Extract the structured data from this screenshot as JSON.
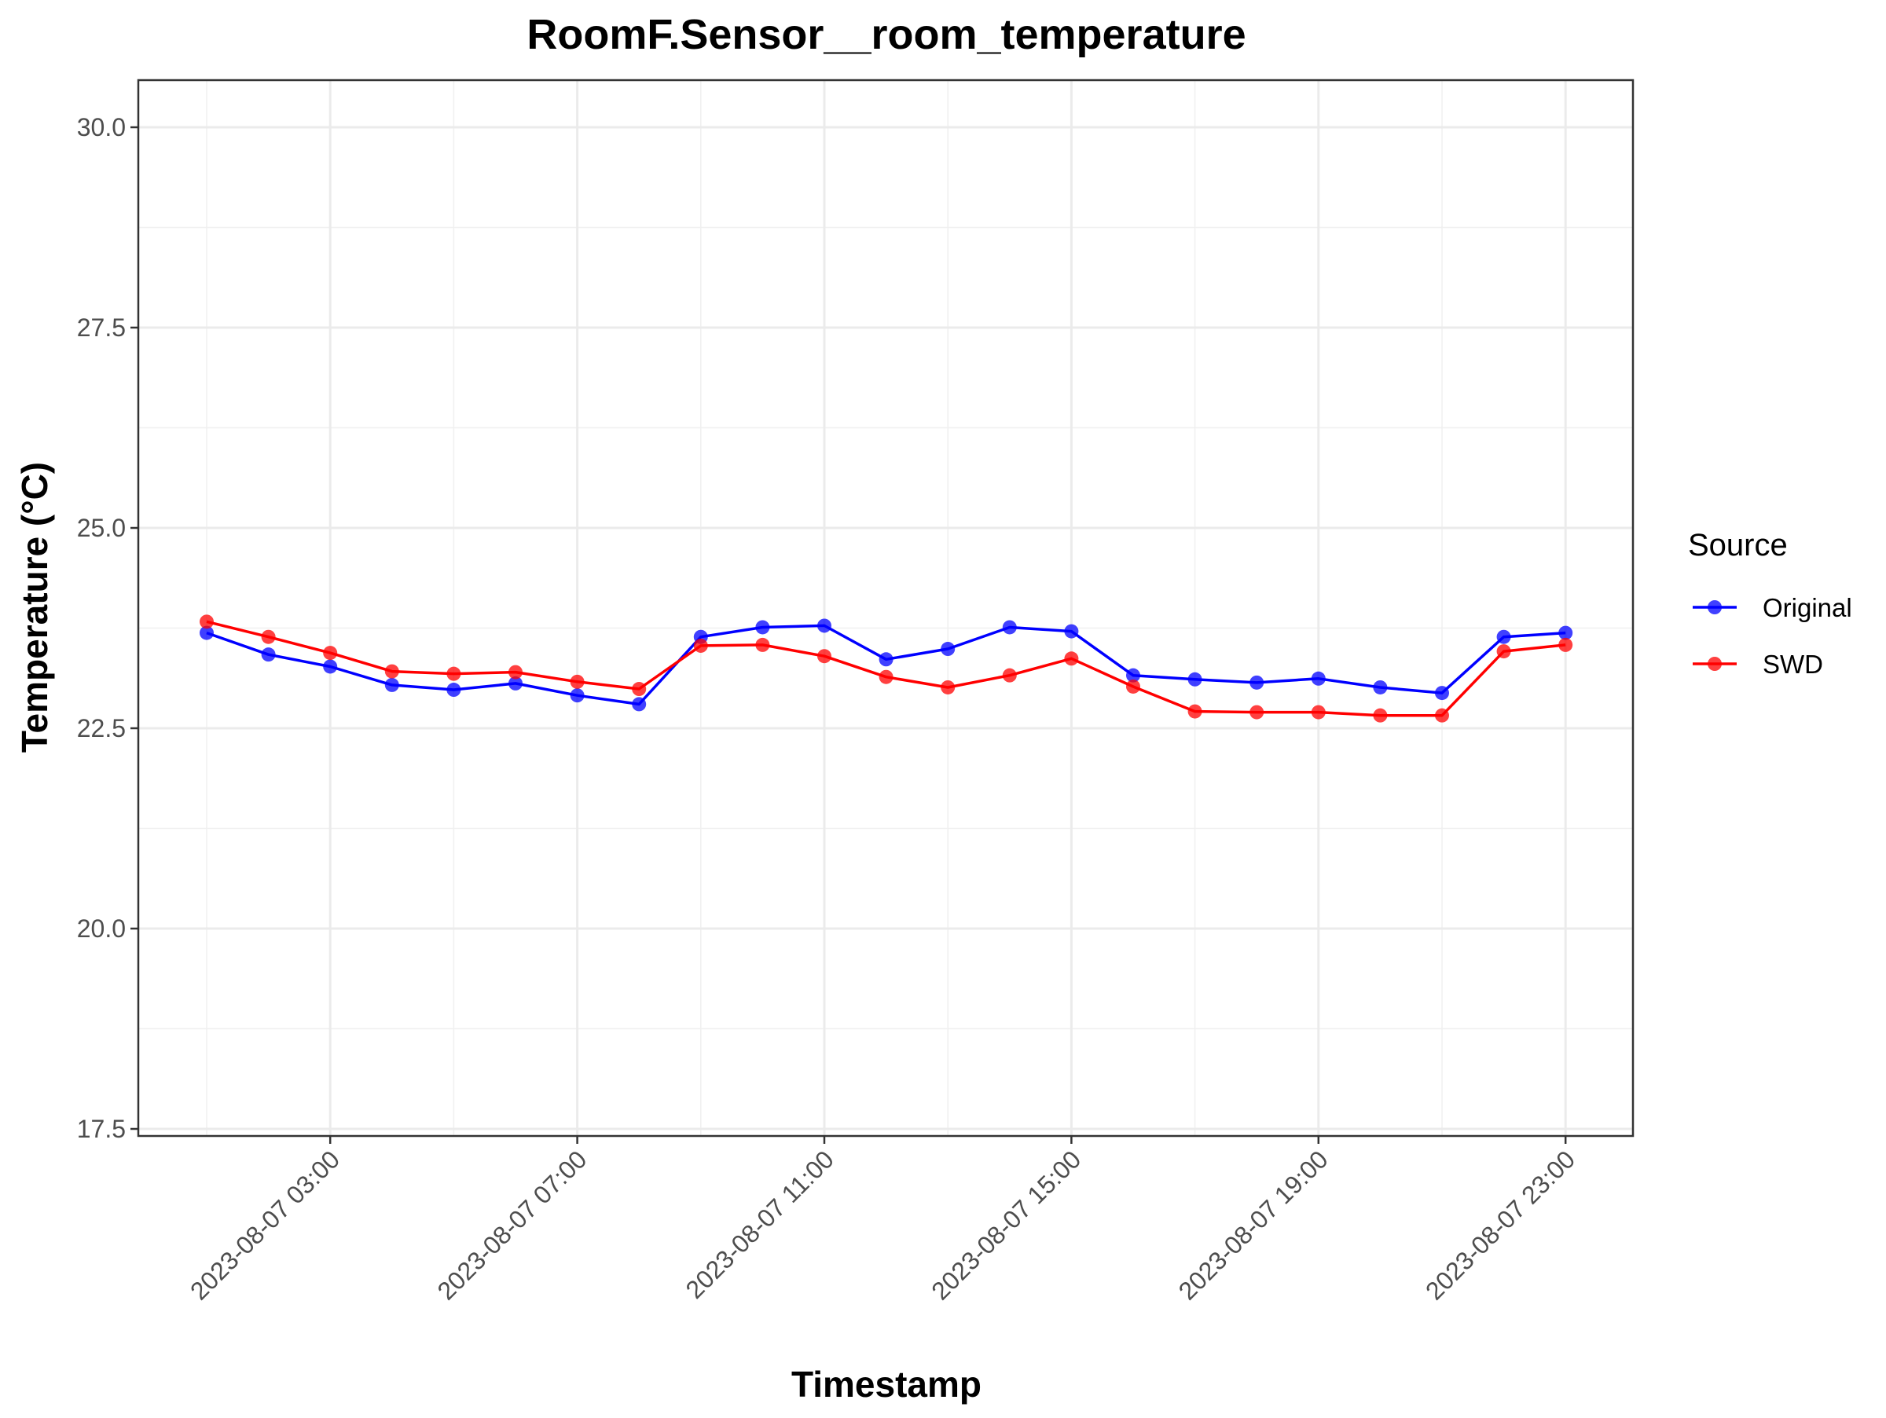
{
  "chart_data": {
    "type": "line",
    "title": "RoomF.Sensor__room_temperature",
    "xlabel": "Timestamp",
    "ylabel": "Temperature (°C)",
    "x": [
      "2023-08-07 01:00",
      "2023-08-07 02:00",
      "2023-08-07 03:00",
      "2023-08-07 04:00",
      "2023-08-07 05:00",
      "2023-08-07 06:00",
      "2023-08-07 07:00",
      "2023-08-07 08:00",
      "2023-08-07 09:00",
      "2023-08-07 10:00",
      "2023-08-07 11:00",
      "2023-08-07 12:00",
      "2023-08-07 13:00",
      "2023-08-07 14:00",
      "2023-08-07 15:00",
      "2023-08-07 16:00",
      "2023-08-07 17:00",
      "2023-08-07 18:00",
      "2023-08-07 19:00",
      "2023-08-07 20:00",
      "2023-08-07 21:00",
      "2023-08-07 22:00",
      "2023-08-07 23:00"
    ],
    "x_ticks": [
      "2023-08-07 03:00",
      "2023-08-07 07:00",
      "2023-08-07 11:00",
      "2023-08-07 15:00",
      "2023-08-07 19:00",
      "2023-08-07 23:00"
    ],
    "y_ticks": [
      "17.5",
      "20.0",
      "22.5",
      "25.0",
      "27.5",
      "30.0"
    ],
    "ylim": [
      17.5,
      30.0
    ],
    "grid": true,
    "legend_title": "Source",
    "legend_position": "right",
    "series": [
      {
        "name": "Original",
        "color": "#0000ff",
        "values": [
          23.69,
          23.42,
          23.27,
          23.04,
          22.98,
          23.06,
          22.91,
          22.8,
          23.64,
          23.76,
          23.78,
          23.36,
          23.49,
          23.76,
          23.71,
          23.16,
          23.11,
          23.07,
          23.12,
          23.01,
          22.94,
          23.64,
          23.69
        ]
      },
      {
        "name": "SWD",
        "color": "#ff0000",
        "values": [
          23.83,
          23.64,
          23.44,
          23.21,
          23.18,
          23.2,
          23.08,
          22.99,
          23.53,
          23.54,
          23.4,
          23.14,
          23.01,
          23.16,
          23.37,
          23.02,
          22.71,
          22.7,
          22.7,
          22.66,
          22.66,
          23.46,
          23.54
        ]
      }
    ]
  }
}
